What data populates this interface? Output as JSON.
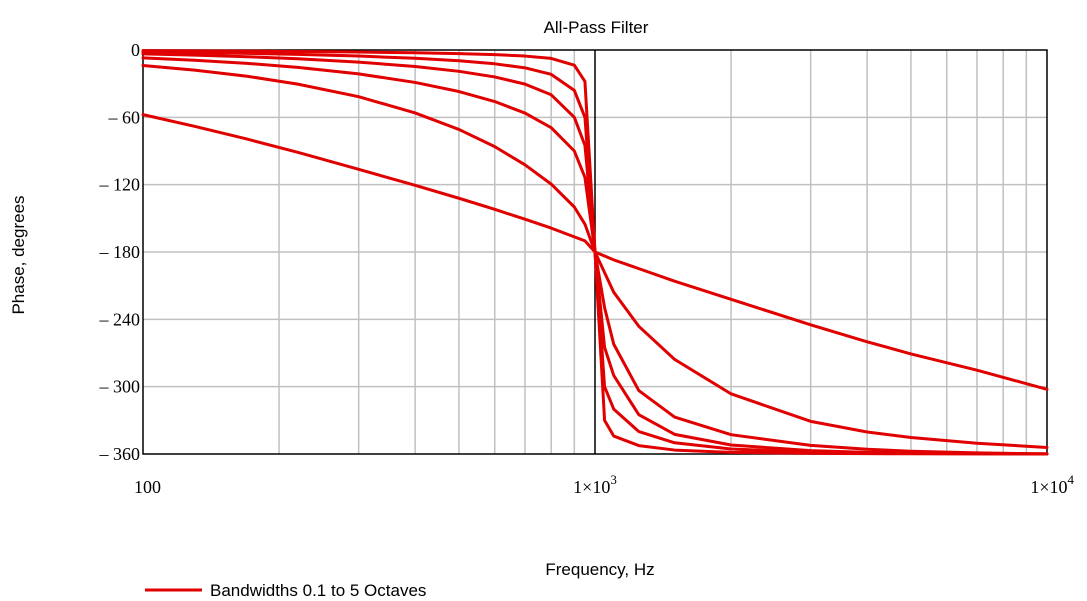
{
  "chart_data": {
    "type": "line",
    "title": "All-Pass Filter",
    "xlabel": "Frequency, Hz",
    "ylabel": "Phase, degrees",
    "x_scale": "log",
    "xlim": [
      100,
      10000
    ],
    "ylim": [
      -360,
      0
    ],
    "x_ticks": [
      {
        "value": 100,
        "label": "100",
        "exp": ""
      },
      {
        "value": 1000,
        "label": "1×10",
        "exp": "3"
      },
      {
        "value": 10000,
        "label": "1×10",
        "exp": "4"
      }
    ],
    "y_ticks": [
      {
        "value": 0,
        "label": "0"
      },
      {
        "value": -60,
        "label": "– 60"
      },
      {
        "value": -120,
        "label": "– 120"
      },
      {
        "value": -180,
        "label": "– 180"
      },
      {
        "value": -240,
        "label": "– 240"
      },
      {
        "value": -300,
        "label": "– 300"
      },
      {
        "value": -360,
        "label": "– 360"
      }
    ],
    "grid": true,
    "center_frequency": 1000,
    "legend": {
      "label": "Bandwidths 0.1 to 5 Octaves",
      "position": "bottom-left"
    },
    "line_color": "#e00000",
    "x": [
      100,
      130,
      170,
      220,
      300,
      400,
      500,
      600,
      700,
      800,
      900,
      950,
      1000,
      1050,
      1100,
      1250,
      1500,
      2000,
      3000,
      4000,
      5000,
      7000,
      10000
    ],
    "series": [
      {
        "values": [
          -57.6,
          -68.0,
          -79.4,
          -91.2,
          -106.3,
          -120.6,
          -132.1,
          -142.0,
          -150.8,
          -158.7,
          -166.5,
          -170.1,
          -180.0,
          -183.6,
          -187.0,
          -194.8,
          -206.0,
          -222.2,
          -244.9,
          -260.0,
          -270.8,
          -285.3,
          -302.4
        ]
      },
      {
        "values": [
          -13.8,
          -17.9,
          -23.4,
          -30.4,
          -41.6,
          -56.1,
          -70.8,
          -86.1,
          -102.3,
          -119.5,
          -139.9,
          -155.2,
          -180.0,
          -198.4,
          -215.8,
          -246.2,
          -275.7,
          -306.4,
          -330.9,
          -340.4,
          -345.3,
          -350.4,
          -354.2
        ]
      },
      {
        "values": [
          -7.0,
          -9.1,
          -11.9,
          -15.5,
          -21.3,
          -28.9,
          -37.0,
          -45.9,
          -56.2,
          -69.2,
          -90.0,
          -113.5,
          -180.0,
          -229.6,
          -262.1,
          -303.5,
          -327.1,
          -342.8,
          -352.3,
          -355.8,
          -357.5,
          -359.0,
          -359.9
        ]
      },
      {
        "values": [
          -3.5,
          -4.6,
          -6.0,
          -7.8,
          -10.8,
          -14.7,
          -19.0,
          -24.0,
          -30.4,
          -39.9,
          -60.0,
          -85.0,
          -180.0,
          -265.0,
          -290.0,
          -325.0,
          -342.5,
          -352.0,
          -357.0,
          -358.5,
          -359.2,
          -359.6,
          -359.9
        ]
      },
      {
        "values": [
          -1.8,
          -2.3,
          -3.0,
          -3.9,
          -5.4,
          -7.4,
          -9.6,
          -12.3,
          -15.9,
          -21.7,
          -36.0,
          -60.0,
          -180.0,
          -300.0,
          -320.0,
          -340.0,
          -350.0,
          -355.5,
          -358.5,
          -359.3,
          -359.6,
          -359.8,
          -359.95
        ]
      },
      {
        "values": [
          -0.6,
          -0.8,
          -1.0,
          -1.3,
          -1.8,
          -2.5,
          -3.2,
          -4.1,
          -5.4,
          -7.5,
          -13.5,
          -28.0,
          -180.0,
          -330.0,
          -344.0,
          -352.5,
          -356.5,
          -358.5,
          -359.4,
          -359.7,
          -359.8,
          -359.9,
          -359.95
        ]
      }
    ]
  }
}
